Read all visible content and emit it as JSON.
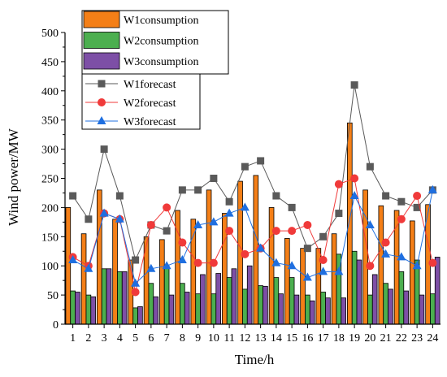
{
  "chart_data": {
    "type": "bar",
    "title": "",
    "xlabel": "Time/h",
    "ylabel": "Wind power/MW",
    "ylim": [
      0,
      500
    ],
    "yticks": [
      0,
      50,
      100,
      150,
      200,
      250,
      300,
      350,
      400,
      450,
      500
    ],
    "grid": false,
    "legend_placement": "top-left",
    "categories": [
      "1",
      "2",
      "3",
      "4",
      "5",
      "6",
      "7",
      "8",
      "9",
      "10",
      "11",
      "12",
      "13",
      "14",
      "15",
      "16",
      "17",
      "18",
      "19",
      "20",
      "21",
      "22",
      "23",
      "24"
    ],
    "bar_series": [
      {
        "name": "W1consumption",
        "color": "#f47f17",
        "values": [
          200,
          155,
          230,
          180,
          110,
          150,
          145,
          195,
          180,
          230,
          190,
          245,
          255,
          200,
          147,
          130,
          130,
          155,
          345,
          230,
          203,
          195,
          177,
          205
        ]
      },
      {
        "name": "W2consumption",
        "color": "#4caf4f",
        "values": [
          57,
          50,
          95,
          90,
          28,
          70,
          100,
          70,
          52,
          52,
          80,
          60,
          66,
          80,
          80,
          50,
          55,
          120,
          125,
          50,
          70,
          90,
          110,
          52
        ]
      },
      {
        "name": "W3consumption",
        "color": "#7d4fa6",
        "values": [
          55,
          47,
          95,
          90,
          30,
          47,
          50,
          55,
          85,
          87,
          95,
          100,
          65,
          52,
          50,
          40,
          45,
          45,
          110,
          85,
          60,
          57,
          50,
          115
        ]
      }
    ],
    "line_series": [
      {
        "name": "W1forecast",
        "color": "#5a5a5a",
        "marker": "square",
        "values": [
          220,
          180,
          300,
          220,
          110,
          170,
          160,
          230,
          230,
          250,
          210,
          270,
          280,
          220,
          200,
          130,
          150,
          190,
          410,
          270,
          220,
          210,
          200,
          230
        ]
      },
      {
        "name": "W2forecast",
        "color": "#f03a3a",
        "marker": "circle",
        "values": [
          115,
          100,
          190,
          180,
          55,
          170,
          200,
          140,
          105,
          105,
          160,
          120,
          130,
          160,
          160,
          170,
          110,
          240,
          250,
          100,
          140,
          180,
          220,
          105
        ]
      },
      {
        "name": "W3forecast",
        "color": "#1f6fe0",
        "marker": "triangle",
        "values": [
          110,
          95,
          190,
          180,
          70,
          95,
          100,
          110,
          170,
          175,
          190,
          200,
          130,
          105,
          100,
          80,
          90,
          90,
          220,
          170,
          120,
          115,
          100,
          230
        ]
      }
    ]
  }
}
